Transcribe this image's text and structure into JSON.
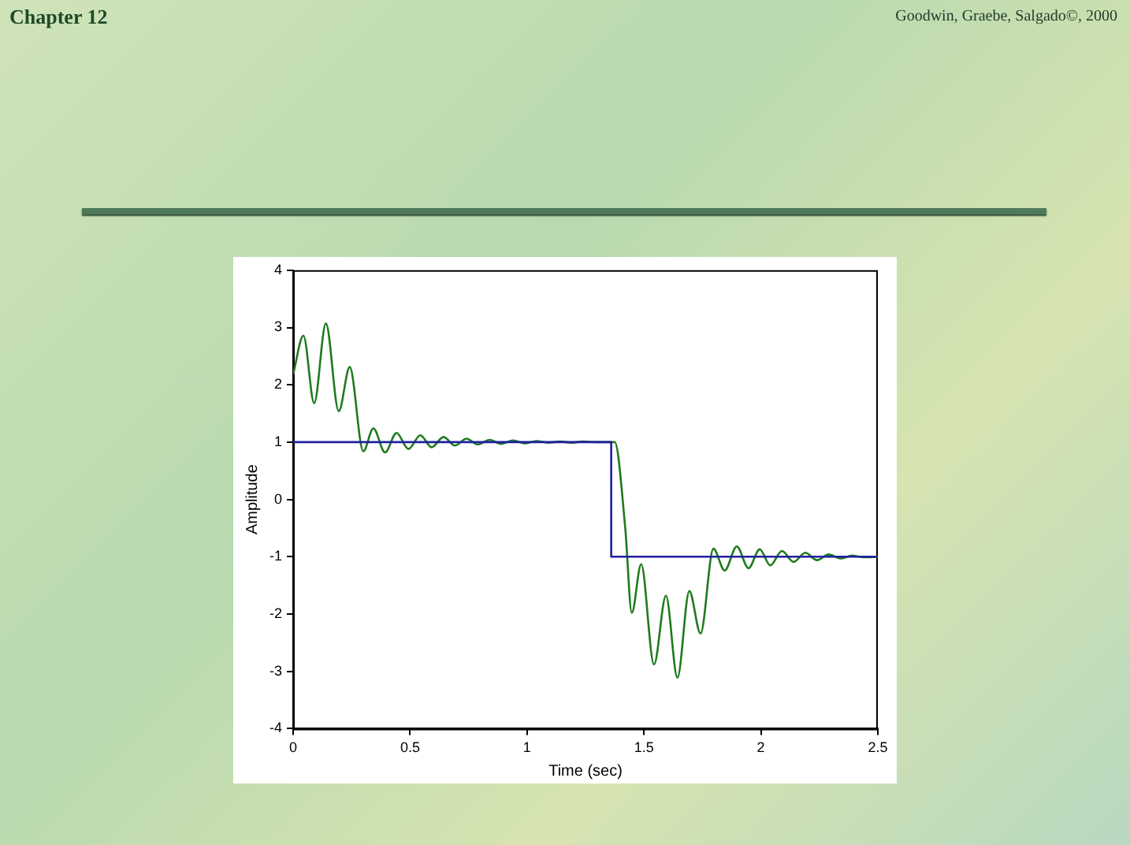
{
  "chart_data": {
    "type": "line",
    "title": "Chapter 12",
    "annotations": [
      "Goodwin, Graebe, Salgado©, 2000"
    ],
    "xlabel": "Time (sec)",
    "ylabel": "Amplitude",
    "xlim": [
      0,
      2.5
    ],
    "xticks": [
      0,
      0.5,
      1,
      1.5,
      2,
      2.5
    ],
    "ylim": [
      -4,
      4
    ],
    "yticks": [
      -4,
      -3,
      -2,
      -1,
      0,
      1,
      2,
      3,
      4
    ],
    "marker": "none",
    "line_style": "solid",
    "series": [
      {
        "type": "step",
        "color": "#2020a0",
        "x": [
          0,
          1.36,
          2.5
        ],
        "values": [
          1,
          -1,
          -1
        ]
      },
      {
        "color": "#1e7b1e",
        "x": [
          0,
          0.044,
          0.09,
          0.14,
          0.195,
          0.242,
          0.3,
          0.343,
          0.393,
          0.442,
          0.493,
          0.544,
          0.592,
          0.643,
          0.692,
          0.741,
          0.79,
          0.84,
          0.89,
          0.94,
          0.99,
          1.04,
          1.09,
          1.14,
          1.19,
          1.24,
          1.29,
          1.34,
          1.375,
          1.42,
          1.448,
          1.488,
          1.543,
          1.594,
          1.643,
          1.694,
          1.742,
          1.797,
          1.845,
          1.897,
          1.947,
          1.995,
          2.04,
          2.09,
          2.14,
          2.19,
          2.24,
          2.29,
          2.34,
          2.39,
          2.44,
          2.5
        ],
        "values": [
          2.18,
          2.86,
          1.68,
          3.07,
          1.54,
          2.31,
          0.84,
          1.24,
          0.82,
          1.16,
          0.88,
          1.12,
          0.91,
          1.09,
          0.94,
          1.06,
          0.96,
          1.04,
          0.97,
          1.03,
          0.98,
          1.02,
          0.99,
          1.01,
          0.99,
          1.01,
          1,
          1,
          1,
          -0.5,
          -1.98,
          -1.13,
          -2.88,
          -1.68,
          -3.11,
          -1.6,
          -2.34,
          -0.86,
          -1.24,
          -0.82,
          -1.2,
          -0.87,
          -1.15,
          -0.9,
          -1.09,
          -0.93,
          -1.06,
          -0.96,
          -1.03,
          -0.98,
          -1.01,
          -1
        ]
      }
    ]
  }
}
